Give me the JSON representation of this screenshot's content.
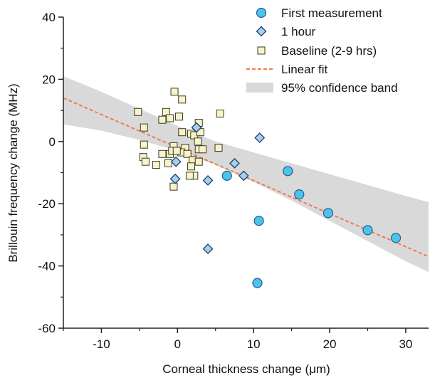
{
  "chart_data": {
    "type": "scatter",
    "xlabel": "Corneal thickness change (μm)",
    "ylabel": "Brillouin frequency change (MHz)",
    "xlim": [
      -15,
      33
    ],
    "ylim": [
      -60,
      40
    ],
    "xticks": [
      -10,
      0,
      10,
      20,
      30
    ],
    "yticks": [
      40,
      20,
      0,
      -20,
      -40,
      -60
    ],
    "grid": false,
    "legend_position": "top-right",
    "series": [
      {
        "name": "First measurement",
        "marker": "circle",
        "color": "#4ec3ea",
        "points": [
          [
            6.5,
            -11
          ],
          [
            10.7,
            -25.5
          ],
          [
            10.5,
            -45.5
          ],
          [
            14.5,
            -9.5
          ],
          [
            16,
            -17
          ],
          [
            19.8,
            -23
          ],
          [
            25,
            -28.5
          ],
          [
            28.7,
            -31
          ]
        ]
      },
      {
        "name": "1 hour",
        "marker": "diamond",
        "color": "#a9cdee",
        "points": [
          [
            -0.3,
            -12
          ],
          [
            -0.2,
            -6.5
          ],
          [
            2.5,
            4.5
          ],
          [
            4,
            -12.5
          ],
          [
            7.5,
            -7
          ],
          [
            8.7,
            -11
          ],
          [
            10.8,
            1.2
          ],
          [
            4,
            -34.5
          ]
        ]
      },
      {
        "name": "Baseline (2-9 hrs)",
        "marker": "square",
        "color": "#f8f3c8",
        "points": [
          [
            -5.2,
            9.5
          ],
          [
            -4.4,
            4.5
          ],
          [
            -4.4,
            -1
          ],
          [
            -4.5,
            -5
          ],
          [
            -4.2,
            -6.5
          ],
          [
            -2.8,
            -7.5
          ],
          [
            -2,
            7
          ],
          [
            -1.5,
            9.5
          ],
          [
            -1,
            7.5
          ],
          [
            -1,
            -4
          ],
          [
            -2,
            -4
          ],
          [
            -1.2,
            -7
          ],
          [
            -0.4,
            16
          ],
          [
            0.6,
            13.5
          ],
          [
            0.2,
            8
          ],
          [
            0.6,
            3
          ],
          [
            1.8,
            2.5
          ],
          [
            2.2,
            2
          ],
          [
            -0.5,
            -1.5
          ],
          [
            1,
            -2
          ],
          [
            0.5,
            -3.5
          ],
          [
            -0.7,
            -3
          ],
          [
            1.3,
            -4
          ],
          [
            2,
            -6
          ],
          [
            2.8,
            -6.5
          ],
          [
            1.8,
            -8
          ],
          [
            2.2,
            -11
          ],
          [
            1.6,
            -11
          ],
          [
            -0.5,
            -14.5
          ],
          [
            2.8,
            6
          ],
          [
            3,
            3
          ],
          [
            2.7,
            0
          ],
          [
            2.8,
            -2.5
          ],
          [
            3.3,
            -2.5
          ],
          [
            5.6,
            9
          ],
          [
            5.4,
            -2
          ],
          [
            -0.1,
            -3
          ]
        ]
      }
    ],
    "fit": {
      "name": "Linear fit",
      "color": "#ef7b4d",
      "x": [
        -15,
        33
      ],
      "y": [
        14,
        -37
      ]
    },
    "band": {
      "name": "95% confidence band",
      "color": "#d9d9d9",
      "x": [
        -15,
        -10,
        -5,
        0,
        5,
        10,
        15,
        20,
        25,
        30,
        33
      ],
      "upper": [
        21,
        16,
        10.5,
        5,
        0,
        -3.5,
        -7,
        -10.5,
        -14,
        -17.5,
        -19.5
      ],
      "lower": [
        5.5,
        3.5,
        0.5,
        -3,
        -7.5,
        -13,
        -19,
        -25.5,
        -32,
        -38.5,
        -42
      ]
    }
  }
}
